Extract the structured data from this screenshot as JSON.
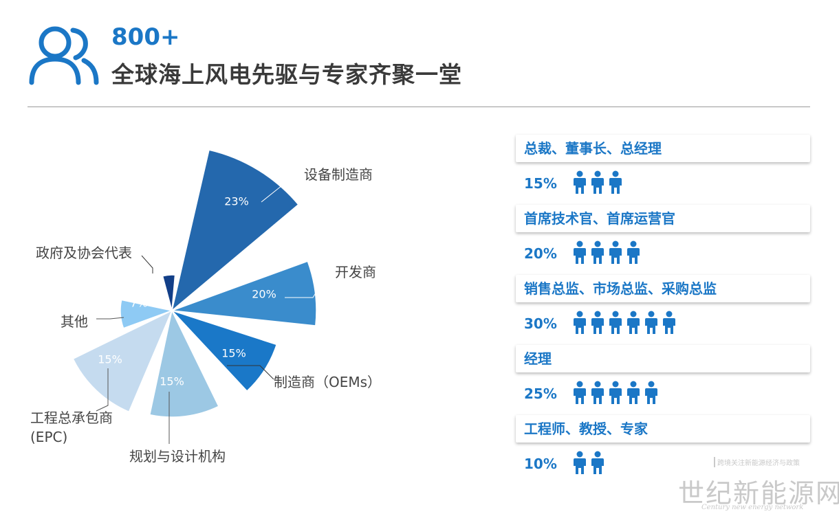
{
  "header": {
    "count": "800+",
    "title": "全球海上风电先驱与专家齐聚一堂",
    "icon": "people-icon"
  },
  "chart_data": {
    "type": "pie",
    "title": "",
    "slices": [
      {
        "label": "设备制造商",
        "value": 23,
        "value_label": "23%",
        "color": "#2468ad"
      },
      {
        "label": "开发商",
        "value": 20,
        "value_label": "20%",
        "color": "#3a8ccc"
      },
      {
        "label": "制造商（OEMs）",
        "value": 15,
        "value_label": "15%",
        "color": "#1a78c8"
      },
      {
        "label": "规划与设计机构",
        "value": 15,
        "value_label": "15%",
        "color": "#9cc8e4"
      },
      {
        "label": "工程总承包商(EPC)",
        "value": 15,
        "value_label": "15%",
        "color": "#c5dbef"
      },
      {
        "label": "其他",
        "value": 7,
        "value_label": "7%",
        "color": "#8ecaf4"
      },
      {
        "label": "政府及协会代表",
        "value": 5,
        "value_label": "5%",
        "color": "#123f88"
      }
    ],
    "outer_labels": {
      "epc_line1": "工程总承包商",
      "epc_line2": "(EPC)"
    }
  },
  "roles": [
    {
      "title": "总裁、董事长、总经理",
      "percent": "15%",
      "icons": 3
    },
    {
      "title": "首席技术官、首席运营官",
      "percent": "20%",
      "icons": 4
    },
    {
      "title": "销售总监、市场总监、采购总监",
      "percent": "30%",
      "icons": 6
    },
    {
      "title": "经理",
      "percent": "25%",
      "icons": 5
    },
    {
      "title": "工程师、教授、专家",
      "percent": "10%",
      "icons": 2
    }
  ],
  "watermark": {
    "top": "跨境关注新能源经济与政策",
    "main": "世纪新能源网",
    "sub": "Century new energy network"
  },
  "colors": {
    "accent": "#1b77c6",
    "title": "#3a3a3a"
  }
}
